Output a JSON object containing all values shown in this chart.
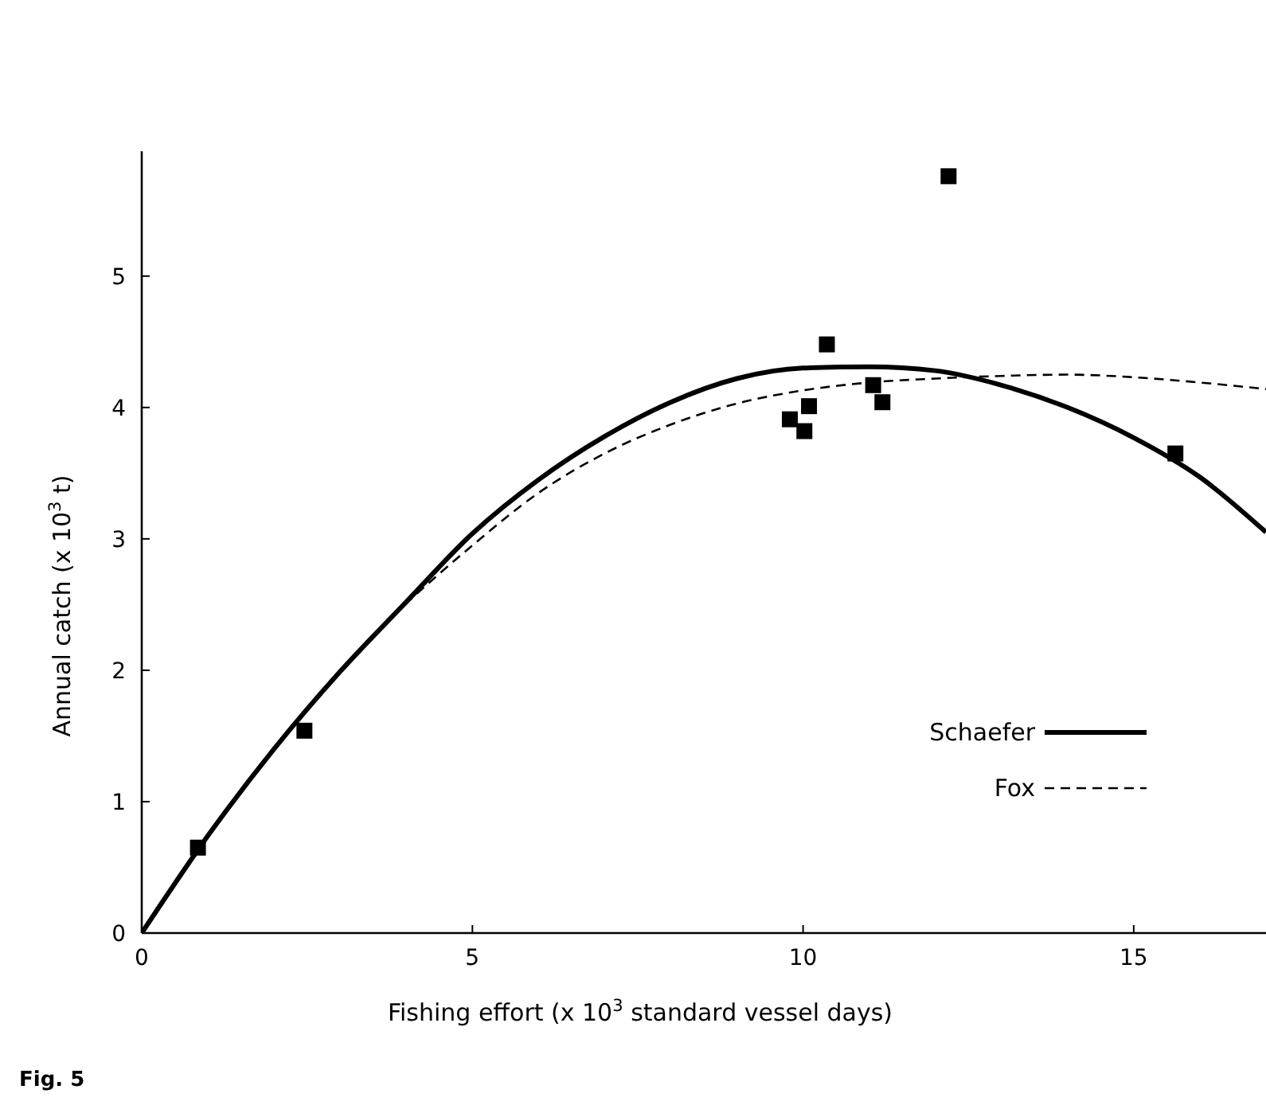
{
  "chart_data": {
    "type": "scatter",
    "xlabel": "Fishing effort (x 10$^{3}$ standard vessel days)",
    "ylabel": "Annual catch (x 10$^{3}$ t)",
    "xlim": [
      0,
      17
    ],
    "ylim": [
      0,
      5.95
    ],
    "xticks": [
      0,
      5,
      10,
      15
    ],
    "yticks": [
      0,
      1,
      2,
      3,
      4,
      5
    ],
    "grid": false,
    "legend": "right",
    "annotations": [
      "Fig. 5"
    ],
    "series": [
      {
        "color": "#000000",
        "marker": "square",
        "x": [
          0.85,
          2.46,
          9.8,
          10.02,
          10.09,
          10.36,
          11.06,
          11.2,
          12.2,
          15.63
        ],
        "values": [
          0.65,
          1.54,
          3.91,
          3.82,
          4.01,
          4.48,
          4.17,
          4.04,
          5.76,
          3.65
        ]
      },
      {
        "type": "line",
        "name": "Schaefer",
        "color": "#000000",
        "line_style": "solid",
        "marker": "none",
        "x": [
          0,
          1,
          2,
          3,
          4,
          5,
          6,
          7,
          8,
          9,
          10,
          11,
          12,
          13,
          14,
          15,
          16,
          17
        ],
        "values": [
          0,
          0.74,
          1.4,
          1.99,
          2.52,
          3.04,
          3.45,
          3.78,
          4.04,
          4.22,
          4.3,
          4.31,
          4.28,
          4.17,
          4.0,
          3.77,
          3.47,
          3.05
        ]
      },
      {
        "type": "line",
        "name": "Fox",
        "color": "#000000",
        "line_style": "dashed",
        "marker": "none",
        "x": [
          3.8,
          5,
          6,
          7,
          8,
          9,
          10,
          11,
          12,
          13,
          14,
          15,
          16,
          17
        ],
        "values": [
          2.42,
          2.95,
          3.35,
          3.65,
          3.87,
          4.03,
          4.13,
          4.19,
          4.22,
          4.24,
          4.25,
          4.23,
          4.19,
          4.14
        ]
      }
    ]
  }
}
